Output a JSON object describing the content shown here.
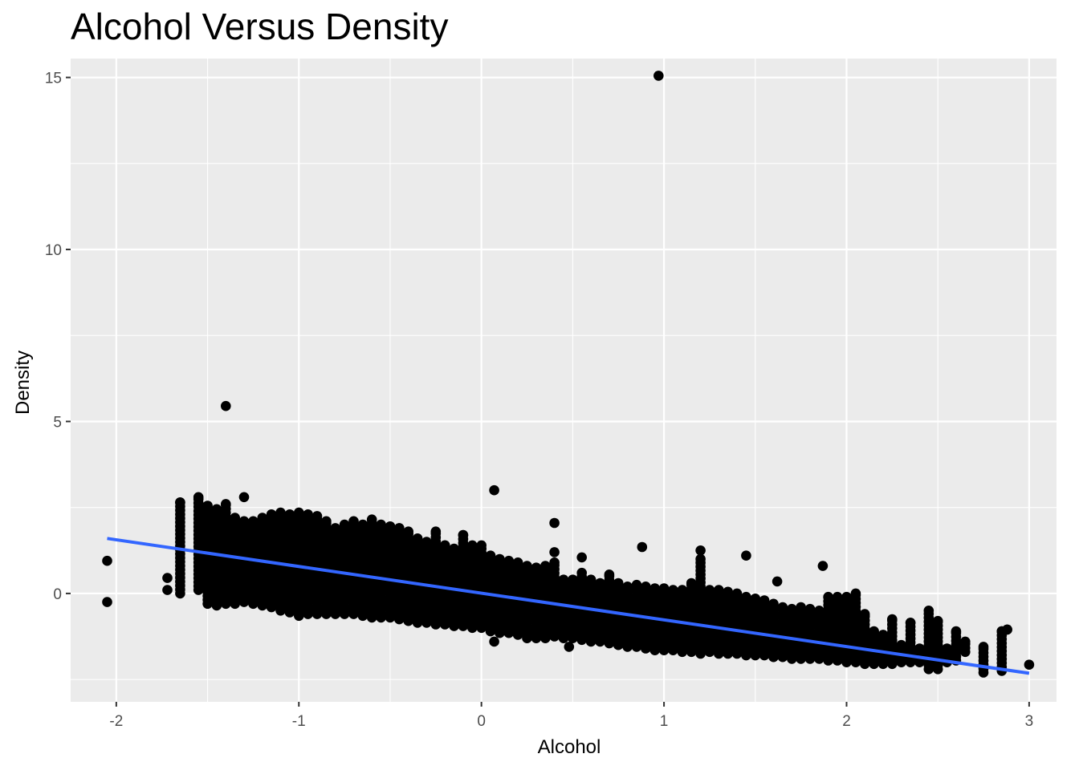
{
  "chart_data": {
    "type": "scatter",
    "title": "Alcohol Versus Density",
    "xlabel": "Alcohol",
    "ylabel": "Density",
    "xlim": [
      -2.25,
      3.15
    ],
    "ylim": [
      -3.15,
      15.55
    ],
    "x_ticks": [
      -2,
      -1,
      0,
      1,
      2,
      3
    ],
    "x_tick_labels": [
      "-2",
      "-1",
      "0",
      "1",
      "2",
      "3"
    ],
    "y_ticks": [
      0,
      5,
      10,
      15
    ],
    "y_tick_labels": [
      "0",
      "5",
      "10",
      "15"
    ],
    "x_minor_ticks": [
      -1.5,
      -0.5,
      0.5,
      1.5,
      2.5
    ],
    "y_minor_ticks": [
      -2.5,
      2.5,
      7.5,
      12.5
    ],
    "grid": true,
    "legend": "none",
    "point_color": "#000000",
    "fit_line": {
      "color": "#3366FF",
      "x": [
        -2.05,
        3.0
      ],
      "y": [
        1.6,
        -2.32
      ]
    },
    "columns": [
      {
        "x": -1.65,
        "ymin": 0.0,
        "ymax": 2.65
      },
      {
        "x": -1.55,
        "ymin": 0.1,
        "ymax": 2.8
      },
      {
        "x": -1.5,
        "ymin": -0.3,
        "ymax": 2.55
      },
      {
        "x": -1.45,
        "ymin": -0.35,
        "ymax": 2.45
      },
      {
        "x": -1.4,
        "ymin": -0.3,
        "ymax": 2.6
      },
      {
        "x": -1.35,
        "ymin": -0.3,
        "ymax": 2.2
      },
      {
        "x": -1.3,
        "ymin": -0.25,
        "ymax": 2.1
      },
      {
        "x": -1.25,
        "ymin": -0.3,
        "ymax": 2.1
      },
      {
        "x": -1.2,
        "ymin": -0.35,
        "ymax": 2.2
      },
      {
        "x": -1.15,
        "ymin": -0.4,
        "ymax": 2.3
      },
      {
        "x": -1.1,
        "ymin": -0.5,
        "ymax": 2.35
      },
      {
        "x": -1.05,
        "ymin": -0.55,
        "ymax": 2.3
      },
      {
        "x": -1.0,
        "ymin": -0.65,
        "ymax": 2.35
      },
      {
        "x": -0.95,
        "ymin": -0.6,
        "ymax": 2.3
      },
      {
        "x": -0.9,
        "ymin": -0.6,
        "ymax": 2.25
      },
      {
        "x": -0.85,
        "ymin": -0.6,
        "ymax": 2.1
      },
      {
        "x": -0.8,
        "ymin": -0.6,
        "ymax": 1.9
      },
      {
        "x": -0.75,
        "ymin": -0.6,
        "ymax": 2.0
      },
      {
        "x": -0.7,
        "ymin": -0.6,
        "ymax": 2.1
      },
      {
        "x": -0.65,
        "ymin": -0.65,
        "ymax": 2.0
      },
      {
        "x": -0.6,
        "ymin": -0.7,
        "ymax": 2.05
      },
      {
        "x": -0.55,
        "ymin": -0.7,
        "ymax": 2.0
      },
      {
        "x": -0.5,
        "ymin": -0.7,
        "ymax": 1.95
      },
      {
        "x": -0.45,
        "ymin": -0.75,
        "ymax": 1.9
      },
      {
        "x": -0.4,
        "ymin": -0.8,
        "ymax": 1.8
      },
      {
        "x": -0.35,
        "ymin": -0.85,
        "ymax": 1.6
      },
      {
        "x": -0.3,
        "ymin": -0.85,
        "ymax": 1.5
      },
      {
        "x": -0.25,
        "ymin": -0.9,
        "ymax": 1.8
      },
      {
        "x": -0.2,
        "ymin": -0.9,
        "ymax": 1.4
      },
      {
        "x": -0.15,
        "ymin": -0.95,
        "ymax": 1.3
      },
      {
        "x": -0.1,
        "ymin": -0.95,
        "ymax": 1.7
      },
      {
        "x": -0.05,
        "ymin": -1.0,
        "ymax": 1.4
      },
      {
        "x": 0.0,
        "ymin": -1.0,
        "ymax": 1.4
      },
      {
        "x": 0.05,
        "ymin": -1.1,
        "ymax": 1.1
      },
      {
        "x": 0.1,
        "ymin": -1.15,
        "ymax": 1.0
      },
      {
        "x": 0.15,
        "ymin": -1.15,
        "ymax": 0.95
      },
      {
        "x": 0.2,
        "ymin": -1.2,
        "ymax": 0.9
      },
      {
        "x": 0.25,
        "ymin": -1.3,
        "ymax": 0.8
      },
      {
        "x": 0.3,
        "ymin": -1.3,
        "ymax": 0.75
      },
      {
        "x": 0.35,
        "ymin": -1.3,
        "ymax": 0.8
      },
      {
        "x": 0.4,
        "ymin": -1.25,
        "ymax": 0.9
      },
      {
        "x": 0.45,
        "ymin": -1.3,
        "ymax": 0.4
      },
      {
        "x": 0.5,
        "ymin": -1.3,
        "ymax": 0.4
      },
      {
        "x": 0.55,
        "ymin": -1.35,
        "ymax": 0.6
      },
      {
        "x": 0.6,
        "ymin": -1.4,
        "ymax": 0.4
      },
      {
        "x": 0.65,
        "ymin": -1.4,
        "ymax": 0.3
      },
      {
        "x": 0.7,
        "ymin": -1.45,
        "ymax": 0.55
      },
      {
        "x": 0.75,
        "ymin": -1.5,
        "ymax": 0.3
      },
      {
        "x": 0.8,
        "ymin": -1.55,
        "ymax": 0.2
      },
      {
        "x": 0.85,
        "ymin": -1.55,
        "ymax": 0.25
      },
      {
        "x": 0.9,
        "ymin": -1.6,
        "ymax": 0.2
      },
      {
        "x": 0.95,
        "ymin": -1.65,
        "ymax": 0.15
      },
      {
        "x": 1.0,
        "ymin": -1.65,
        "ymax": 0.15
      },
      {
        "x": 1.05,
        "ymin": -1.65,
        "ymax": 0.1
      },
      {
        "x": 1.1,
        "ymin": -1.7,
        "ymax": 0.1
      },
      {
        "x": 1.15,
        "ymin": -1.7,
        "ymax": 0.3
      },
      {
        "x": 1.2,
        "ymin": -1.75,
        "ymax": 1.0
      },
      {
        "x": 1.25,
        "ymin": -1.7,
        "ymax": 0.1
      },
      {
        "x": 1.3,
        "ymin": -1.75,
        "ymax": 0.1
      },
      {
        "x": 1.35,
        "ymin": -1.75,
        "ymax": 0.05
      },
      {
        "x": 1.4,
        "ymin": -1.75,
        "ymax": 0.0
      },
      {
        "x": 1.45,
        "ymin": -1.8,
        "ymax": -0.1
      },
      {
        "x": 1.5,
        "ymin": -1.8,
        "ymax": -0.15
      },
      {
        "x": 1.55,
        "ymin": -1.8,
        "ymax": -0.2
      },
      {
        "x": 1.6,
        "ymin": -1.85,
        "ymax": -0.3
      },
      {
        "x": 1.65,
        "ymin": -1.85,
        "ymax": -0.4
      },
      {
        "x": 1.7,
        "ymin": -1.9,
        "ymax": -0.45
      },
      {
        "x": 1.75,
        "ymin": -1.9,
        "ymax": -0.4
      },
      {
        "x": 1.8,
        "ymin": -1.9,
        "ymax": -0.45
      },
      {
        "x": 1.85,
        "ymin": -1.9,
        "ymax": -0.5
      },
      {
        "x": 1.9,
        "ymin": -1.95,
        "ymax": -0.1
      },
      {
        "x": 1.95,
        "ymin": -1.95,
        "ymax": -0.1
      },
      {
        "x": 2.0,
        "ymin": -2.0,
        "ymax": -0.1
      },
      {
        "x": 2.05,
        "ymin": -2.0,
        "ymax": 0.0
      },
      {
        "x": 2.1,
        "ymin": -2.05,
        "ymax": -0.6
      },
      {
        "x": 2.15,
        "ymin": -2.05,
        "ymax": -1.1
      },
      {
        "x": 2.2,
        "ymin": -2.05,
        "ymax": -1.2
      },
      {
        "x": 2.25,
        "ymin": -2.05,
        "ymax": -0.75
      },
      {
        "x": 2.3,
        "ymin": -2.0,
        "ymax": -1.5
      },
      {
        "x": 2.35,
        "ymin": -2.0,
        "ymax": -0.85
      },
      {
        "x": 2.4,
        "ymin": -2.0,
        "ymax": -1.6
      },
      {
        "x": 2.45,
        "ymin": -2.2,
        "ymax": -0.5
      },
      {
        "x": 2.5,
        "ymin": -2.2,
        "ymax": -0.8
      },
      {
        "x": 2.55,
        "ymin": -2.0,
        "ymax": -1.6
      },
      {
        "x": 2.6,
        "ymin": -1.95,
        "ymax": -1.1
      },
      {
        "x": 2.65,
        "ymin": -1.7,
        "ymax": -1.4
      },
      {
        "x": 2.75,
        "ymin": -2.3,
        "ymax": -1.55
      },
      {
        "x": 2.85,
        "ymin": -2.25,
        "ymax": -1.1
      },
      {
        "x": 2.88,
        "ymin": -1.05,
        "ymax": -1.05
      }
    ],
    "outliers": [
      {
        "x": -2.05,
        "y": 0.95
      },
      {
        "x": -2.05,
        "y": -0.25
      },
      {
        "x": -1.72,
        "y": 0.45
      },
      {
        "x": -1.72,
        "y": 0.1
      },
      {
        "x": -1.4,
        "y": 5.45
      },
      {
        "x": -1.3,
        "y": 2.8
      },
      {
        "x": -0.6,
        "y": 2.15
      },
      {
        "x": 0.07,
        "y": 3.0
      },
      {
        "x": 0.07,
        "y": -1.4
      },
      {
        "x": 0.4,
        "y": 2.05
      },
      {
        "x": 0.4,
        "y": 1.2
      },
      {
        "x": 0.55,
        "y": 1.05
      },
      {
        "x": 0.88,
        "y": 1.35
      },
      {
        "x": 0.97,
        "y": 15.05
      },
      {
        "x": 1.2,
        "y": 1.25
      },
      {
        "x": 1.45,
        "y": 1.1
      },
      {
        "x": 1.62,
        "y": 0.35
      },
      {
        "x": 1.87,
        "y": 0.8
      },
      {
        "x": 0.48,
        "y": -1.55
      },
      {
        "x": 3.0,
        "y": -2.07
      }
    ]
  }
}
